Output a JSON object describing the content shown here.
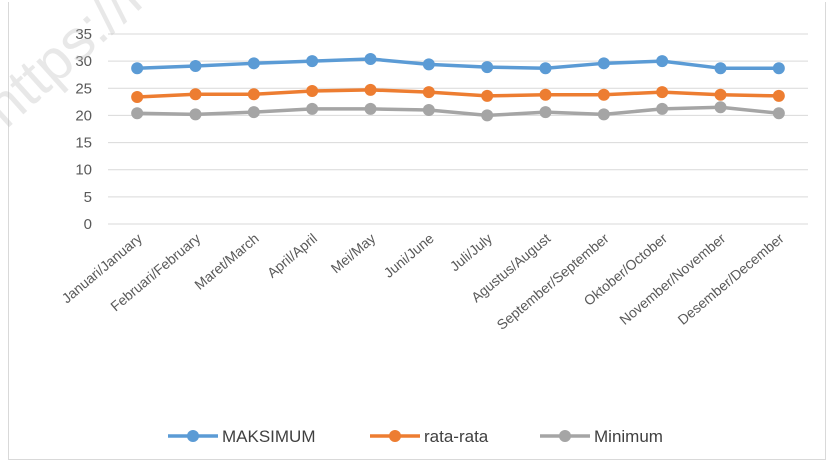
{
  "watermark": "https://k",
  "chart_data": {
    "type": "line",
    "title": "",
    "xlabel": "",
    "ylabel": "",
    "ylim": [
      0,
      35
    ],
    "yticks": [
      0,
      5,
      10,
      15,
      20,
      25,
      30,
      35
    ],
    "grid": true,
    "legend_position": "bottom",
    "categories": [
      "Januari/January",
      "Februari/February",
      "Maret/March",
      "April/April",
      "Mei/May",
      "Juni/June",
      "Juli/July",
      "Agustus/August",
      "September/September",
      "Oktober/October",
      "November/November",
      "Desember/December"
    ],
    "series": [
      {
        "name": "MAKSIMUM",
        "color": "#5b9bd5",
        "values": [
          28.7,
          29.1,
          29.6,
          30.0,
          30.4,
          29.4,
          28.9,
          28.7,
          29.6,
          30.0,
          28.7,
          28.7
        ]
      },
      {
        "name": "rata-rata",
        "color": "#ed7d31",
        "values": [
          23.4,
          23.9,
          23.9,
          24.5,
          24.7,
          24.3,
          23.6,
          23.8,
          23.8,
          24.3,
          23.8,
          23.6
        ]
      },
      {
        "name": "Minimum",
        "color": "#a5a5a5",
        "values": [
          20.4,
          20.2,
          20.6,
          21.2,
          21.2,
          21.0,
          20.0,
          20.6,
          20.2,
          21.2,
          21.5,
          20.4
        ]
      }
    ]
  }
}
